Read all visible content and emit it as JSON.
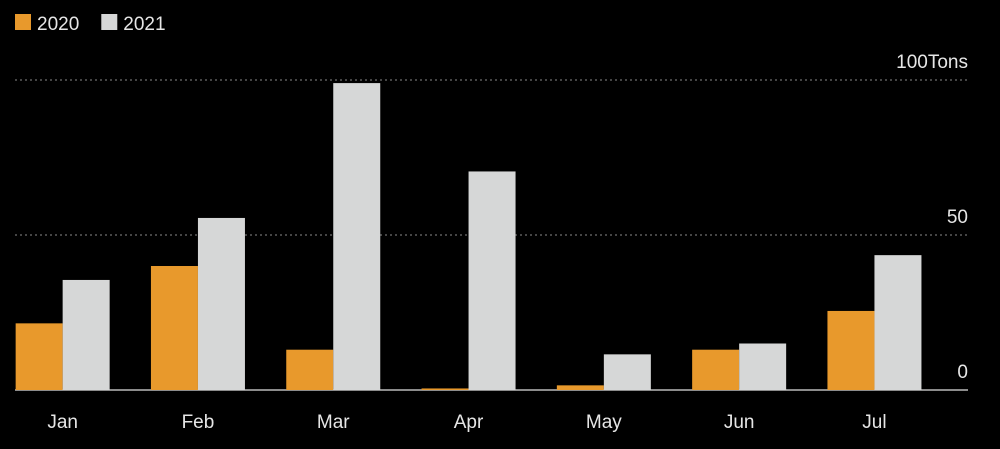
{
  "chart_data": {
    "type": "bar",
    "categories": [
      "Jan",
      "Feb",
      "Mar",
      "Apr",
      "May",
      "Jun",
      "Jul"
    ],
    "series": [
      {
        "name": "2020",
        "color": "#e8992c",
        "values": [
          21.5,
          40,
          13,
          0.5,
          1.5,
          13,
          25.5
        ]
      },
      {
        "name": "2021",
        "color": "#d6d7d7",
        "values": [
          35.5,
          55.5,
          99,
          70.5,
          11.5,
          15,
          43.5
        ]
      }
    ],
    "ylim": [
      0,
      100
    ],
    "yticks": [
      0,
      50,
      {
        "value": 100,
        "label": "100Tons"
      }
    ],
    "grid": true,
    "legend": "top-left"
  }
}
